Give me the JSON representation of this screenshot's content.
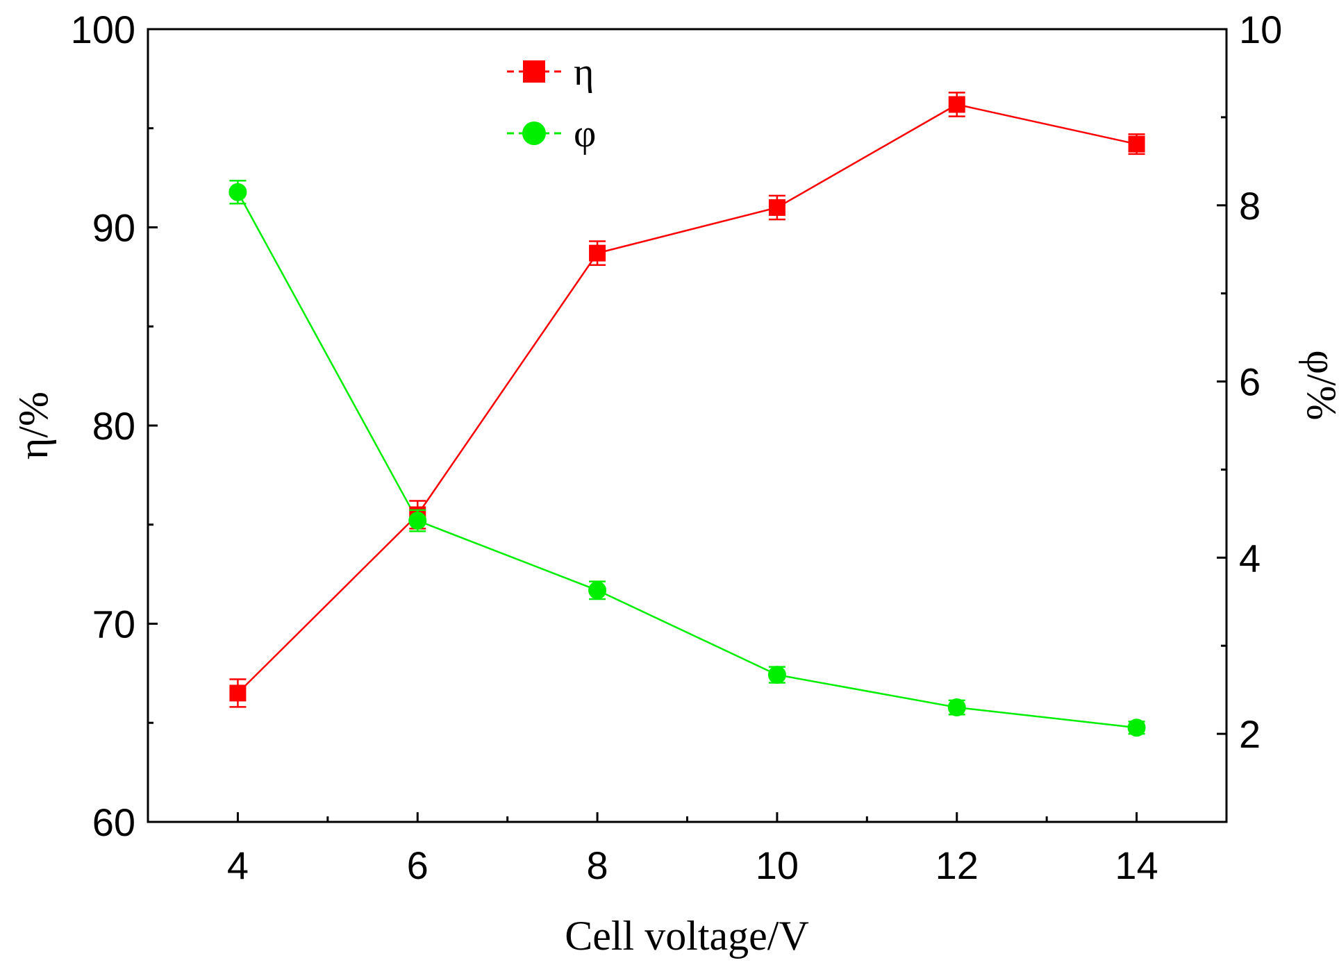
{
  "chart_data": {
    "type": "line",
    "title": "",
    "xlabel": "Cell voltage/V",
    "ylabel_left": "η/%",
    "ylabel_right": "φ/%",
    "x": [
      4,
      6,
      8,
      10,
      12,
      14
    ],
    "xlim": [
      3,
      15
    ],
    "xticks": [
      4,
      6,
      8,
      10,
      12,
      14
    ],
    "ylim_left": [
      60,
      100
    ],
    "yticks_left": [
      60,
      70,
      80,
      90,
      100
    ],
    "ylim_right": [
      1,
      10
    ],
    "yticks_right": [
      2,
      4,
      6,
      8,
      10
    ],
    "legend_position": "top-center",
    "series": [
      {
        "name": "η",
        "axis": "left",
        "marker": "square",
        "color": "#ff0000",
        "values": [
          66.5,
          75.5,
          88.7,
          91.0,
          96.2,
          94.2
        ],
        "errors": [
          0.7,
          0.7,
          0.6,
          0.6,
          0.6,
          0.5
        ]
      },
      {
        "name": "φ",
        "axis": "right",
        "marker": "circle",
        "color": "#00ee00",
        "values": [
          8.15,
          4.42,
          3.63,
          2.67,
          2.3,
          2.07
        ],
        "errors": [
          0.13,
          0.12,
          0.1,
          0.09,
          0.08,
          0.07
        ]
      }
    ]
  }
}
